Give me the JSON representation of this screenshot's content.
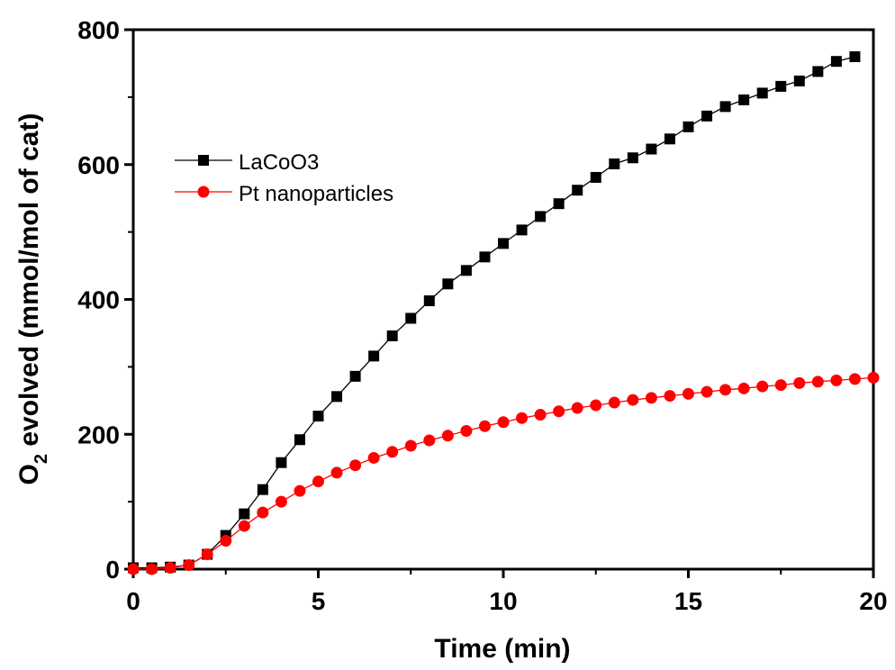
{
  "chart_data": {
    "type": "line",
    "xlabel": "Time (min)",
    "ylabel_main": "O",
    "ylabel_sub": "2",
    "ylabel_rest": " evolved (mmol/mol of cat)",
    "xlim": [
      0,
      20
    ],
    "ylim": [
      0,
      800
    ],
    "xticks": [
      "0",
      "5",
      "10",
      "15",
      "20"
    ],
    "yticks": [
      "0",
      "200",
      "400",
      "600",
      "800"
    ],
    "grid": false,
    "legend_position": "upper-left",
    "series": [
      {
        "name": "LaCoO3",
        "color": "#000000",
        "marker": "square",
        "x": [
          0,
          0.5,
          1,
          1.5,
          2,
          2.5,
          3,
          3.5,
          4,
          4.5,
          5,
          5.5,
          6,
          6.5,
          7,
          7.5,
          8,
          8.5,
          9,
          9.5,
          10,
          10.5,
          11,
          11.5,
          12,
          12.5,
          13,
          13.5,
          14,
          14.5,
          15,
          15.5,
          16,
          16.5,
          17,
          17.5,
          18,
          18.5,
          19,
          19.5
        ],
        "y": [
          2,
          2,
          3,
          6,
          22,
          50,
          82,
          118,
          158,
          192,
          227,
          256,
          286,
          316,
          346,
          372,
          398,
          423,
          443,
          463,
          483,
          503,
          523,
          542,
          562,
          581,
          601,
          610,
          623,
          638,
          656,
          672,
          686,
          696,
          706,
          716,
          724,
          738,
          753,
          760
        ]
      },
      {
        "name": "Pt nanoparticles",
        "color": "#ff0000",
        "marker": "circle",
        "x": [
          0,
          0.5,
          1,
          1.5,
          2,
          2.5,
          3,
          3.5,
          4,
          4.5,
          5,
          5.5,
          6,
          6.5,
          7,
          7.5,
          8,
          8.5,
          9,
          9.5,
          10,
          10.5,
          11,
          11.5,
          12,
          12.5,
          13,
          13.5,
          14,
          14.5,
          15,
          15.5,
          16,
          16.5,
          17,
          17.5,
          18,
          18.5,
          19,
          19.5,
          20
        ],
        "y": [
          0,
          0,
          2,
          6,
          22,
          42,
          64,
          84,
          100,
          116,
          130,
          143,
          154,
          165,
          174,
          183,
          191,
          198,
          205,
          212,
          218,
          224,
          229,
          234,
          239,
          243,
          247,
          251,
          254,
          257,
          260,
          263,
          266,
          268,
          271,
          273,
          276,
          278,
          280,
          282,
          284
        ]
      }
    ]
  }
}
